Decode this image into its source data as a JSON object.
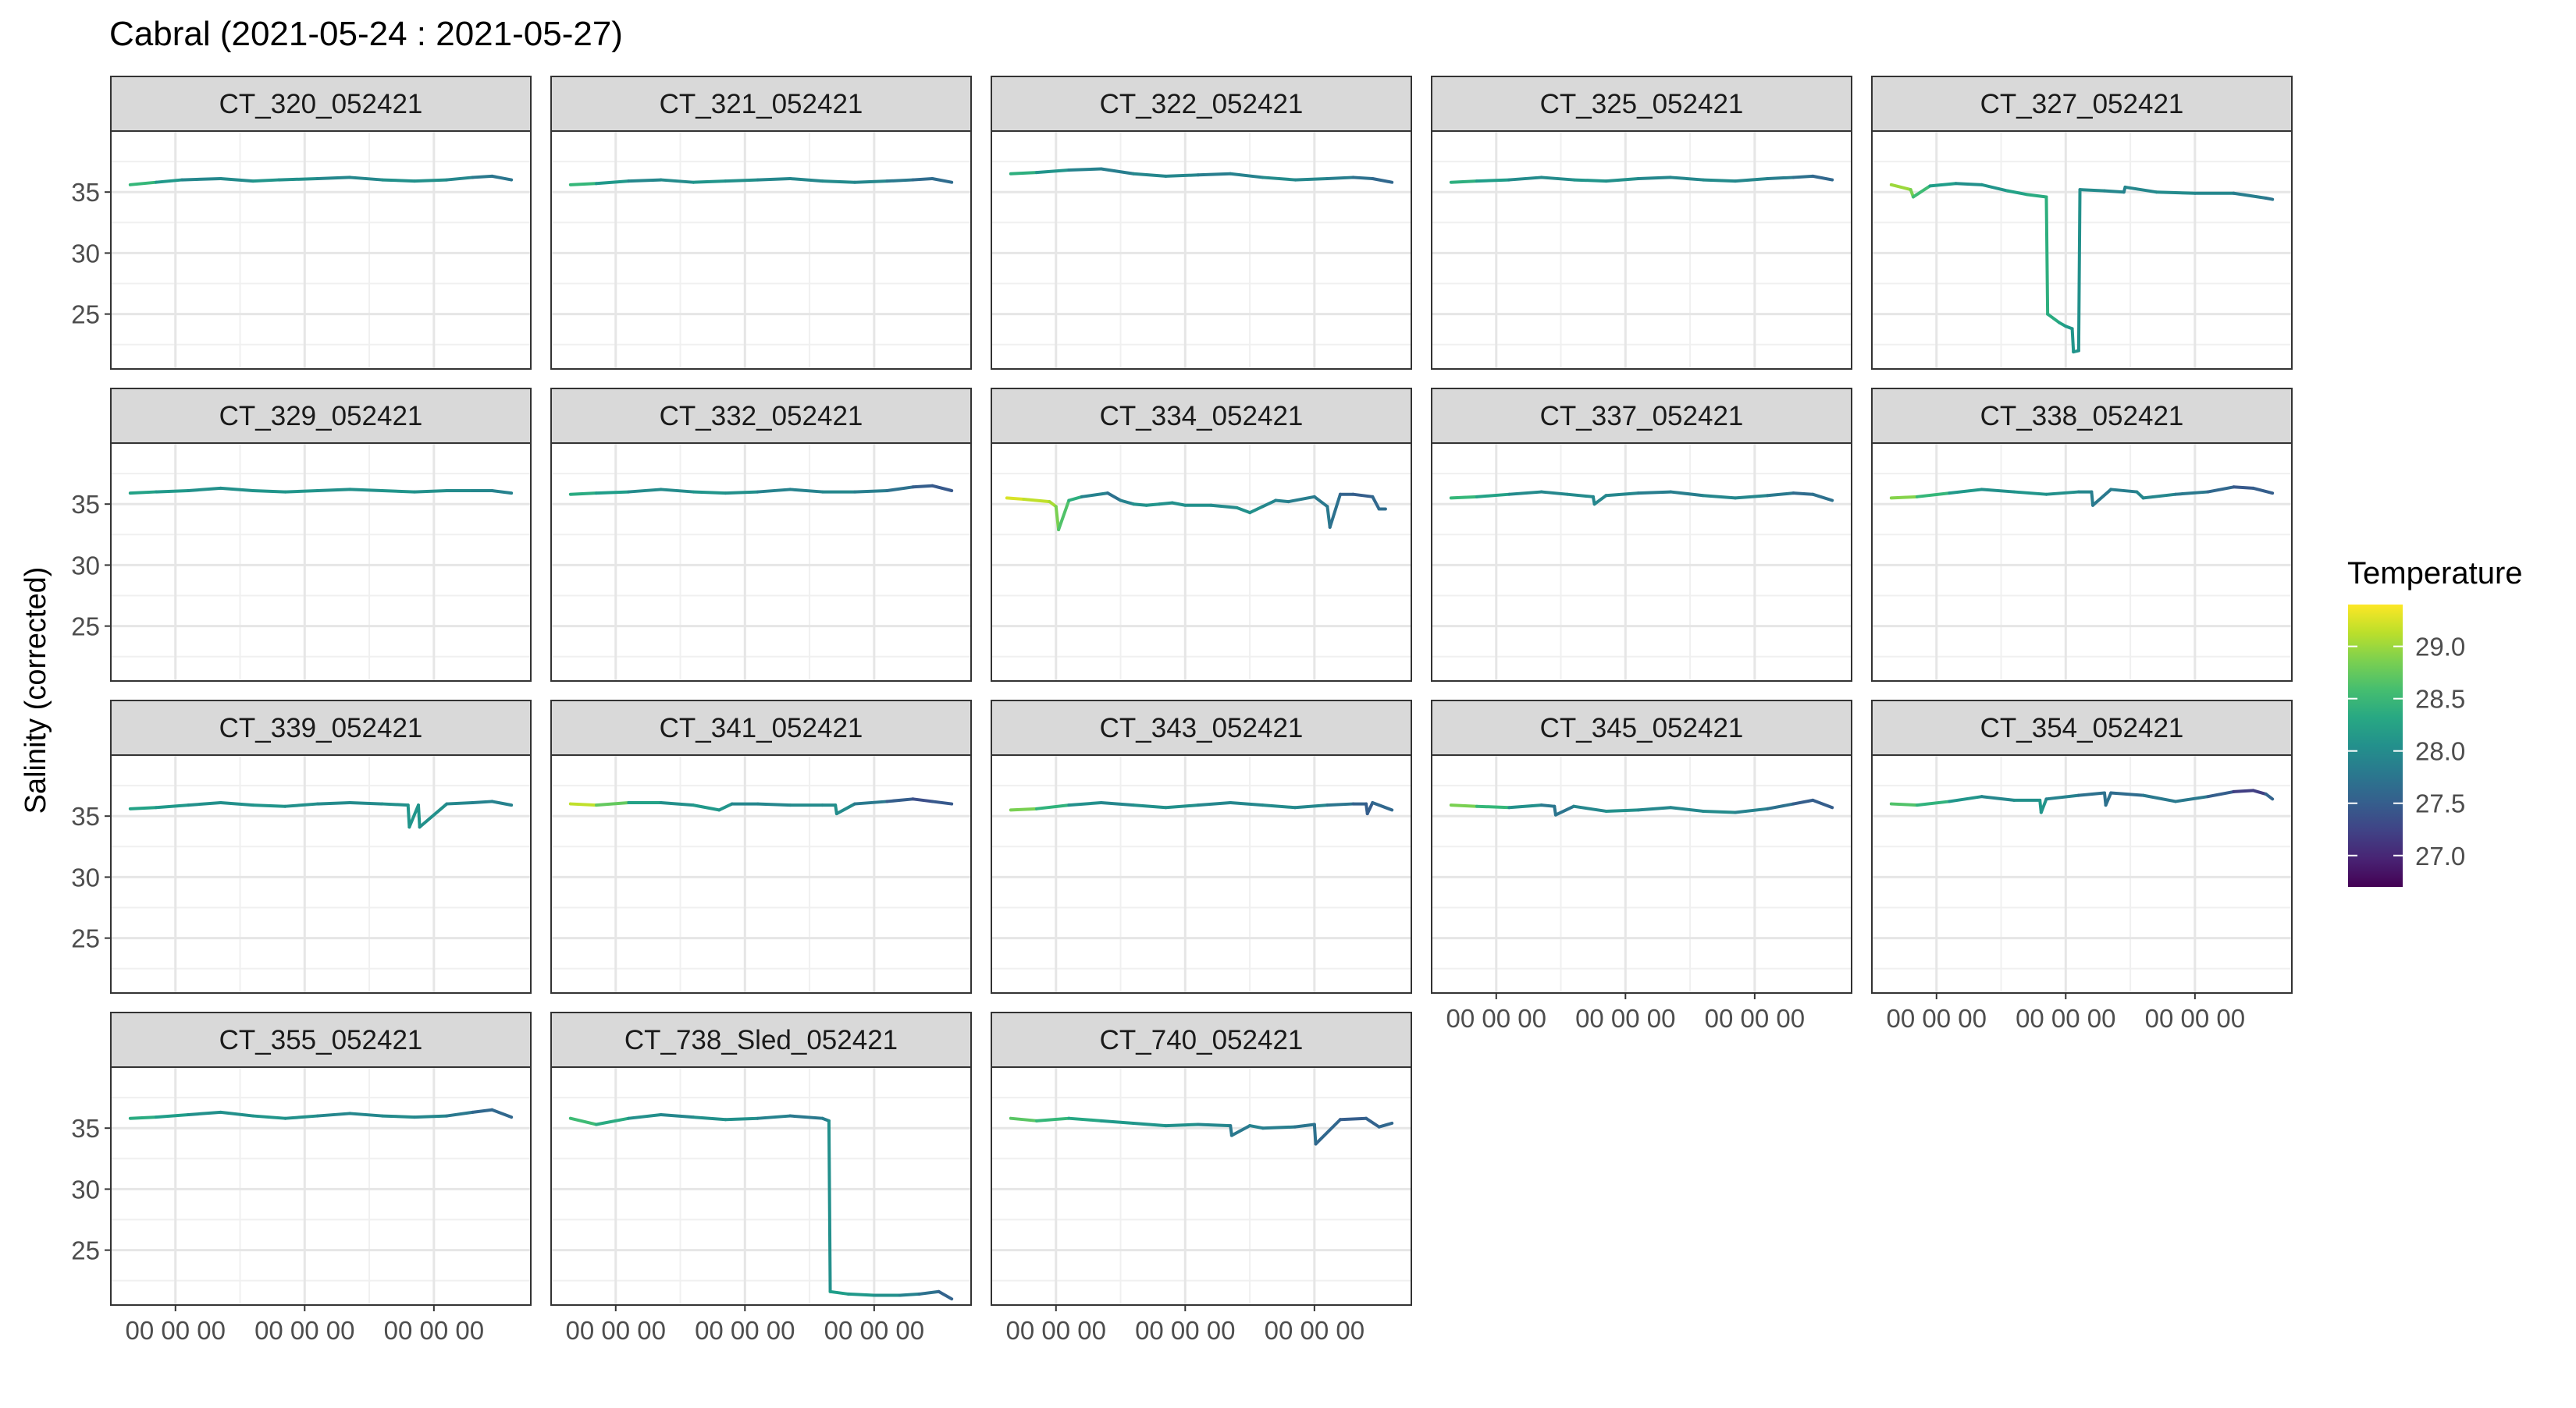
{
  "chart_data": {
    "type": "line",
    "title": "Cabral (2021-05-24 : 2021-05-27)",
    "ylabel": "Salinity (corrected)",
    "xlabel": "",
    "ylim": [
      20.5,
      40
    ],
    "yticks": [
      25,
      30,
      35
    ],
    "xlim": [
      0,
      3.25
    ],
    "xticks": [
      0.5,
      1.5,
      2.5
    ],
    "xtick_labels": [
      "00 00 00",
      "00 00 00",
      "00 00 00"
    ],
    "grid": true,
    "legend": {
      "title": "Temperature",
      "position": "right",
      "range": [
        26.7,
        29.4
      ],
      "ticks": [
        29.0,
        28.5,
        28.0,
        27.5,
        27.0
      ],
      "tick_labels": [
        "29.0",
        "28.5",
        "28.0",
        "27.5",
        "27.0"
      ],
      "colormap": "viridis"
    },
    "panels": [
      {
        "name": "CT_320_052421",
        "x": [
          0.15,
          0.35,
          0.55,
          0.85,
          1.1,
          1.3,
          1.6,
          1.85,
          2.1,
          2.35,
          2.6,
          2.8,
          2.95,
          3.1
        ],
        "y": [
          35.6,
          35.8,
          36.0,
          36.1,
          35.9,
          36.0,
          36.1,
          36.2,
          36.0,
          35.9,
          36.0,
          36.2,
          36.3,
          36.0
        ],
        "t": [
          28.7,
          28.3,
          28.0,
          27.9,
          28.1,
          28.1,
          28.0,
          27.9,
          28.0,
          28.1,
          28.0,
          27.9,
          27.7,
          27.8
        ]
      },
      {
        "name": "CT_321_052421",
        "x": [
          0.15,
          0.35,
          0.6,
          0.85,
          1.1,
          1.35,
          1.6,
          1.85,
          2.1,
          2.35,
          2.6,
          2.8,
          2.95,
          3.1
        ],
        "y": [
          35.6,
          35.7,
          35.9,
          36.0,
          35.8,
          35.9,
          36.0,
          36.1,
          35.9,
          35.8,
          35.9,
          36.0,
          36.1,
          35.8
        ],
        "t": [
          28.7,
          28.3,
          28.0,
          27.9,
          28.1,
          28.1,
          28.0,
          27.9,
          28.0,
          28.0,
          27.9,
          27.7,
          27.6,
          27.7
        ]
      },
      {
        "name": "CT_322_052421",
        "x": [
          0.15,
          0.35,
          0.6,
          0.85,
          1.1,
          1.35,
          1.6,
          1.85,
          2.1,
          2.35,
          2.6,
          2.8,
          2.95,
          3.1
        ],
        "y": [
          36.5,
          36.6,
          36.8,
          36.9,
          36.5,
          36.3,
          36.4,
          36.5,
          36.2,
          36.0,
          36.1,
          36.2,
          36.1,
          35.8
        ],
        "t": [
          28.6,
          28.2,
          28.0,
          27.8,
          27.9,
          28.0,
          27.9,
          27.8,
          28.0,
          28.0,
          27.9,
          27.8,
          27.6,
          27.6
        ]
      },
      {
        "name": "CT_325_052421",
        "x": [
          0.15,
          0.35,
          0.6,
          0.85,
          1.1,
          1.35,
          1.6,
          1.85,
          2.1,
          2.35,
          2.6,
          2.8,
          2.95,
          3.1
        ],
        "y": [
          35.8,
          35.9,
          36.0,
          36.2,
          36.0,
          35.9,
          36.1,
          36.2,
          36.0,
          35.9,
          36.1,
          36.2,
          36.3,
          36.0
        ],
        "t": [
          28.5,
          28.3,
          28.1,
          27.9,
          28.1,
          28.1,
          28.0,
          27.9,
          28.0,
          28.0,
          27.9,
          27.8,
          27.6,
          27.6
        ]
      },
      {
        "name": "CT_327_052421",
        "x": [
          0.15,
          0.3,
          0.32,
          0.45,
          0.65,
          0.85,
          1.05,
          1.2,
          1.35,
          1.36,
          1.45,
          1.5,
          1.55,
          1.56,
          1.6,
          1.61,
          1.8,
          1.95,
          1.96,
          2.2,
          2.5,
          2.8,
          3.05,
          3.1
        ],
        "y": [
          35.6,
          35.2,
          34.6,
          35.5,
          35.7,
          35.6,
          35.1,
          34.8,
          34.6,
          25.0,
          24.3,
          24.0,
          23.8,
          21.9,
          22.0,
          35.2,
          35.1,
          35.0,
          35.4,
          35.0,
          34.9,
          34.9,
          34.5,
          34.4
        ],
        "t": [
          29.1,
          28.9,
          28.8,
          28.3,
          28.1,
          28.0,
          28.2,
          28.3,
          28.4,
          28.4,
          28.3,
          28.2,
          28.1,
          28.1,
          28.1,
          28.0,
          28.0,
          27.9,
          27.9,
          28.0,
          28.0,
          27.9,
          27.8,
          27.7
        ]
      },
      {
        "name": "CT_329_052421",
        "x": [
          0.15,
          0.35,
          0.6,
          0.85,
          1.1,
          1.35,
          1.6,
          1.85,
          2.1,
          2.35,
          2.6,
          2.8,
          2.95,
          3.1
        ],
        "y": [
          35.9,
          36.0,
          36.1,
          36.3,
          36.1,
          36.0,
          36.1,
          36.2,
          36.1,
          36.0,
          36.1,
          36.1,
          36.1,
          35.9
        ],
        "t": [
          28.3,
          28.2,
          28.1,
          28.0,
          28.1,
          28.1,
          28.1,
          28.0,
          28.1,
          28.1,
          28.0,
          28.0,
          27.9,
          27.9
        ]
      },
      {
        "name": "CT_332_052421",
        "x": [
          0.15,
          0.35,
          0.6,
          0.85,
          1.1,
          1.35,
          1.6,
          1.85,
          2.1,
          2.35,
          2.6,
          2.8,
          2.95,
          3.1
        ],
        "y": [
          35.8,
          35.9,
          36.0,
          36.2,
          36.0,
          35.9,
          36.0,
          36.2,
          36.0,
          36.0,
          36.1,
          36.4,
          36.5,
          36.1
        ],
        "t": [
          28.4,
          28.3,
          28.1,
          27.9,
          28.1,
          28.1,
          28.0,
          27.8,
          28.0,
          27.9,
          27.8,
          27.6,
          27.4,
          27.5
        ]
      },
      {
        "name": "CT_334_052421",
        "x": [
          0.12,
          0.25,
          0.45,
          0.5,
          0.52,
          0.6,
          0.7,
          0.9,
          1.0,
          1.1,
          1.2,
          1.3,
          1.4,
          1.5,
          1.7,
          1.9,
          2.0,
          2.1,
          2.2,
          2.3,
          2.5,
          2.6,
          2.62,
          2.7,
          2.8,
          2.95,
          3.0,
          3.05
        ],
        "y": [
          35.5,
          35.4,
          35.2,
          34.8,
          32.9,
          35.3,
          35.6,
          35.9,
          35.3,
          35.0,
          34.9,
          35.0,
          35.1,
          34.9,
          34.9,
          34.7,
          34.3,
          34.8,
          35.3,
          35.2,
          35.6,
          34.8,
          33.1,
          35.8,
          35.8,
          35.6,
          34.6,
          34.6
        ],
        "t": [
          29.3,
          29.2,
          29.1,
          29.0,
          28.7,
          28.6,
          28.2,
          27.6,
          27.8,
          28.0,
          28.1,
          28.1,
          28.0,
          28.1,
          28.0,
          28.0,
          28.1,
          28.0,
          27.9,
          27.9,
          27.8,
          27.8,
          27.8,
          27.6,
          27.5,
          27.5,
          27.7,
          27.6
        ]
      },
      {
        "name": "CT_337_052421",
        "x": [
          0.15,
          0.35,
          0.6,
          0.85,
          1.05,
          1.25,
          1.26,
          1.35,
          1.6,
          1.85,
          2.1,
          2.35,
          2.6,
          2.8,
          2.95,
          3.1
        ],
        "y": [
          35.5,
          35.6,
          35.8,
          36.0,
          35.8,
          35.6,
          35.0,
          35.7,
          35.9,
          36.0,
          35.7,
          35.5,
          35.7,
          35.9,
          35.8,
          35.3
        ],
        "t": [
          28.6,
          28.4,
          28.1,
          27.9,
          28.0,
          28.0,
          27.9,
          28.0,
          27.9,
          27.8,
          27.9,
          28.0,
          27.9,
          27.7,
          27.6,
          27.8
        ]
      },
      {
        "name": "CT_338_052421",
        "x": [
          0.15,
          0.35,
          0.6,
          0.85,
          1.1,
          1.35,
          1.6,
          1.7,
          1.71,
          1.85,
          2.05,
          2.1,
          2.35,
          2.6,
          2.8,
          2.95,
          3.1
        ],
        "y": [
          35.5,
          35.6,
          35.9,
          36.2,
          36.0,
          35.8,
          36.0,
          36.0,
          34.9,
          36.2,
          36.0,
          35.5,
          35.8,
          36.0,
          36.4,
          36.3,
          35.9
        ],
        "t": [
          29.1,
          28.7,
          28.3,
          28.0,
          28.1,
          28.1,
          28.0,
          27.9,
          27.8,
          27.8,
          27.9,
          28.0,
          27.9,
          27.7,
          27.5,
          27.4,
          27.6
        ]
      },
      {
        "name": "CT_339_052421",
        "x": [
          0.15,
          0.35,
          0.6,
          0.85,
          1.1,
          1.35,
          1.6,
          1.85,
          2.1,
          2.3,
          2.31,
          2.38,
          2.39,
          2.6,
          2.8,
          2.95,
          3.1
        ],
        "y": [
          35.6,
          35.7,
          35.9,
          36.1,
          35.9,
          35.8,
          36.0,
          36.1,
          36.0,
          35.9,
          34.1,
          35.9,
          34.1,
          36.0,
          36.1,
          36.2,
          35.9
        ],
        "t": [
          28.3,
          28.2,
          28.1,
          28.0,
          28.1,
          28.1,
          28.0,
          28.0,
          28.0,
          28.1,
          28.1,
          28.1,
          28.1,
          28.0,
          27.9,
          27.9,
          27.9
        ]
      },
      {
        "name": "CT_341_052421",
        "x": [
          0.15,
          0.35,
          0.6,
          0.85,
          1.1,
          1.3,
          1.4,
          1.6,
          1.85,
          2.1,
          2.2,
          2.21,
          2.35,
          2.6,
          2.8,
          2.95,
          3.1
        ],
        "y": [
          36.0,
          35.9,
          36.1,
          36.1,
          35.9,
          35.5,
          36.0,
          36.0,
          35.9,
          35.9,
          35.9,
          35.2,
          36.0,
          36.2,
          36.4,
          36.2,
          36.0
        ],
        "t": [
          29.3,
          29.0,
          28.5,
          28.0,
          28.1,
          28.2,
          28.0,
          27.9,
          28.0,
          28.0,
          28.0,
          28.1,
          27.9,
          27.7,
          27.3,
          27.4,
          27.5
        ]
      },
      {
        "name": "CT_343_052421",
        "x": [
          0.15,
          0.35,
          0.6,
          0.85,
          1.1,
          1.35,
          1.6,
          1.85,
          2.1,
          2.35,
          2.6,
          2.8,
          2.9,
          2.91,
          2.95,
          3.1
        ],
        "y": [
          35.5,
          35.6,
          35.9,
          36.1,
          35.9,
          35.7,
          35.9,
          36.1,
          35.9,
          35.7,
          35.9,
          36.0,
          36.0,
          35.2,
          36.1,
          35.5
        ],
        "t": [
          29.0,
          28.7,
          28.2,
          27.9,
          28.0,
          28.1,
          28.0,
          27.9,
          28.0,
          28.0,
          27.9,
          27.6,
          27.5,
          27.5,
          27.5,
          27.7
        ]
      },
      {
        "name": "CT_345_052421",
        "x": [
          0.15,
          0.35,
          0.6,
          0.85,
          0.95,
          0.96,
          1.1,
          1.35,
          1.6,
          1.85,
          2.1,
          2.35,
          2.6,
          2.8,
          2.95,
          3.1
        ],
        "y": [
          35.9,
          35.8,
          35.7,
          35.9,
          35.8,
          35.1,
          35.8,
          35.4,
          35.5,
          35.7,
          35.4,
          35.3,
          35.6,
          36.0,
          36.3,
          35.7
        ],
        "t": [
          29.0,
          28.7,
          28.3,
          27.8,
          27.8,
          27.7,
          27.8,
          28.1,
          28.0,
          27.9,
          28.0,
          28.0,
          27.8,
          27.6,
          27.4,
          27.6
        ]
      },
      {
        "name": "CT_354_052421",
        "x": [
          0.15,
          0.35,
          0.6,
          0.85,
          1.1,
          1.3,
          1.31,
          1.35,
          1.6,
          1.8,
          1.81,
          1.85,
          2.1,
          2.35,
          2.6,
          2.8,
          2.95,
          3.05,
          3.1
        ],
        "y": [
          36.0,
          35.9,
          36.2,
          36.6,
          36.3,
          36.3,
          35.3,
          36.4,
          36.7,
          36.9,
          35.9,
          36.9,
          36.7,
          36.2,
          36.6,
          37.0,
          37.1,
          36.8,
          36.4
        ],
        "t": [
          28.7,
          28.6,
          28.3,
          27.9,
          28.0,
          28.1,
          28.2,
          28.0,
          27.8,
          27.6,
          27.8,
          27.6,
          27.7,
          27.9,
          27.7,
          27.3,
          27.1,
          27.3,
          27.8
        ]
      },
      {
        "name": "CT_355_052421",
        "x": [
          0.15,
          0.35,
          0.6,
          0.85,
          1.1,
          1.35,
          1.6,
          1.85,
          2.1,
          2.35,
          2.6,
          2.8,
          2.95,
          3.1
        ],
        "y": [
          35.8,
          35.9,
          36.1,
          36.3,
          36.0,
          35.8,
          36.0,
          36.2,
          36.0,
          35.9,
          36.0,
          36.3,
          36.5,
          35.9
        ],
        "t": [
          28.4,
          28.3,
          28.1,
          28.0,
          28.1,
          28.1,
          28.0,
          27.9,
          28.0,
          28.0,
          27.9,
          27.7,
          27.5,
          27.7
        ]
      },
      {
        "name": "CT_738_Sled_052421",
        "x": [
          0.15,
          0.35,
          0.6,
          0.85,
          1.1,
          1.35,
          1.6,
          1.85,
          2.1,
          2.15,
          2.16,
          2.3,
          2.5,
          2.7,
          2.85,
          3.0,
          3.1
        ],
        "y": [
          35.8,
          35.3,
          35.8,
          36.1,
          35.9,
          35.7,
          35.8,
          36.0,
          35.8,
          35.6,
          21.6,
          21.4,
          21.3,
          21.3,
          21.4,
          21.6,
          21.0
        ],
        "t": [
          28.6,
          28.5,
          28.2,
          27.9,
          28.0,
          28.1,
          28.0,
          27.8,
          27.8,
          27.9,
          28.2,
          28.2,
          28.1,
          28.0,
          27.8,
          27.6,
          27.5
        ]
      },
      {
        "name": "CT_740_052421",
        "x": [
          0.15,
          0.35,
          0.6,
          0.85,
          1.1,
          1.35,
          1.6,
          1.85,
          1.86,
          2.0,
          2.1,
          2.35,
          2.5,
          2.51,
          2.7,
          2.9,
          3.0,
          3.1
        ],
        "y": [
          35.8,
          35.6,
          35.8,
          35.6,
          35.4,
          35.2,
          35.3,
          35.2,
          34.4,
          35.2,
          35.0,
          35.1,
          35.3,
          33.7,
          35.7,
          35.8,
          35.1,
          35.4
        ],
        "t": [
          28.8,
          28.6,
          28.4,
          28.2,
          28.1,
          28.1,
          28.0,
          27.9,
          27.7,
          27.9,
          27.9,
          27.8,
          27.7,
          27.7,
          27.5,
          27.5,
          27.6,
          27.6
        ]
      }
    ]
  }
}
